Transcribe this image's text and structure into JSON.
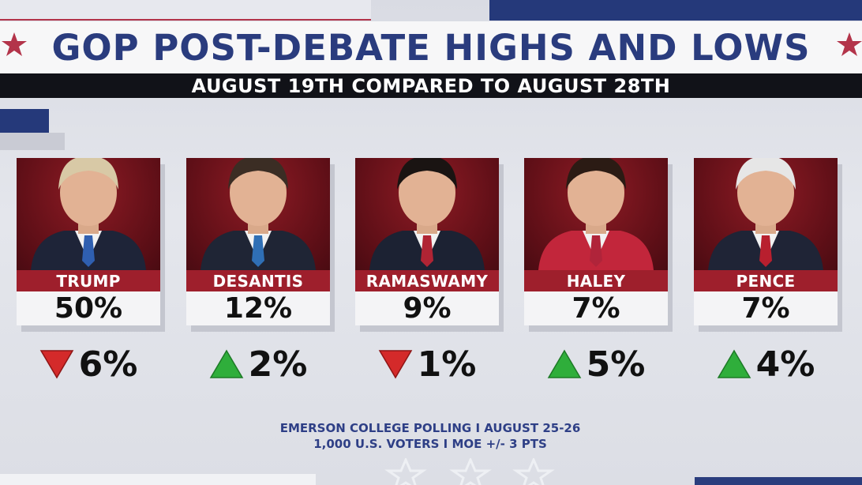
{
  "header": {
    "title": "GOP POST-DEBATE HIGHS AND LOWS",
    "subtitle": "AUGUST 19TH COMPARED TO AUGUST 28TH"
  },
  "colors": {
    "navy": "#2a3c7e",
    "red": "#9e1f2c",
    "down_arrow": "#d42a2a",
    "up_arrow": "#2fae3b"
  },
  "chart_data": {
    "type": "table",
    "columns": [
      "candidate",
      "poll_share_pct",
      "change_pct",
      "direction"
    ],
    "candidates": [
      {
        "name": "TRUMP",
        "share": "50%",
        "share_value": 50,
        "change": "6%",
        "change_value": -6,
        "direction": "down"
      },
      {
        "name": "DESANTIS",
        "share": "12%",
        "share_value": 12,
        "change": "2%",
        "change_value": 2,
        "direction": "up"
      },
      {
        "name": "RAMASWAMY",
        "share": "9%",
        "share_value": 9,
        "change": "1%",
        "change_value": -1,
        "direction": "down"
      },
      {
        "name": "HALEY",
        "share": "7%",
        "share_value": 7,
        "change": "5%",
        "change_value": 5,
        "direction": "up"
      },
      {
        "name": "PENCE",
        "share": "7%",
        "share_value": 7,
        "change": "4%",
        "change_value": 4,
        "direction": "up"
      }
    ]
  },
  "source": {
    "line1": "EMERSON COLLEGE POLLING I AUGUST 25-26",
    "line2": "1,000 U.S. VOTERS I MOE +/- 3 PTS"
  }
}
